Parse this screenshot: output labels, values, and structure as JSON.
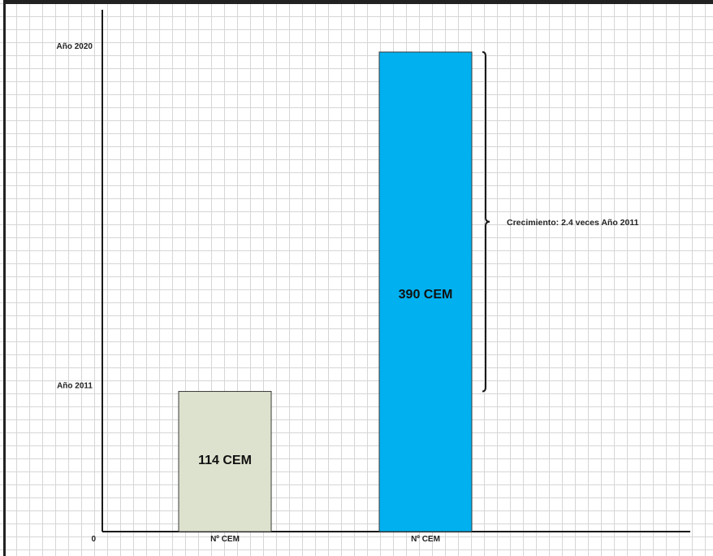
{
  "chart_data": {
    "type": "bar",
    "categories": [
      "Nº CEM",
      "Nº CEM"
    ],
    "values": [
      114,
      390
    ],
    "data_labels": [
      "114 CEM",
      "390 CEM"
    ],
    "bar_colors": [
      "#dde2ce",
      "#00b0ef"
    ],
    "ylim": [
      0,
      390
    ],
    "y_ticks": [
      {
        "value": 0,
        "label": "0"
      },
      {
        "value": 114,
        "label": "Año 2011"
      },
      {
        "value": 390,
        "label": "Año 2020"
      }
    ],
    "annotation": {
      "text": "Crecimiento: 2.4 veces Año 2011",
      "from_value": 114,
      "to_value": 390
    },
    "grid": true,
    "title": "",
    "xlabel": "",
    "ylabel": ""
  }
}
